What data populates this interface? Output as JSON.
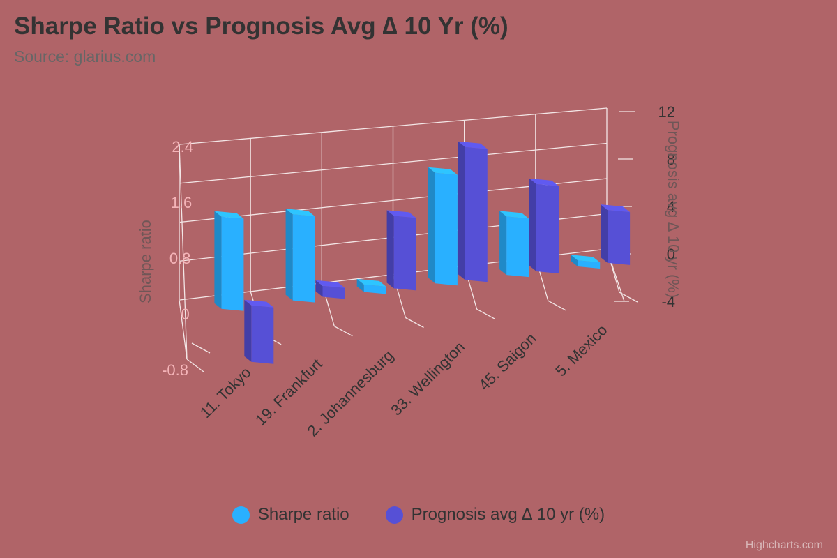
{
  "chart_data": {
    "type": "bar",
    "title": "Sharpe Ratio vs Prognosis Avg ∆ 10 Yr (%)",
    "subtitle": "Source: glarius.com",
    "categories": [
      "11. Tokyo",
      "19. Frankfurt",
      "2. Johannesburg",
      "33. Wellington",
      "45. Saigon",
      "5. Mexico"
    ],
    "series": [
      {
        "name": "Sharpe ratio",
        "axis": "left",
        "color": "#29b0ff",
        "values": [
          1.5,
          1.4,
          0.12,
          1.8,
          0.95,
          0.1
        ]
      },
      {
        "name": "Prognosis avg ∆ 10 yr (%)",
        "axis": "right",
        "color": "#5650d6",
        "values": [
          -4.6,
          0.9,
          5.9,
          10.8,
          7.1,
          4.3
        ]
      }
    ],
    "yAxisLeft": {
      "label": "Sharpe ratio",
      "min": -0.8,
      "max": 2.4,
      "ticks": [
        "-0.8",
        "0",
        "0.8",
        "1.6",
        "2.4"
      ]
    },
    "yAxisRight": {
      "label": "Prognosis avg ∆ 10 yr (%)",
      "min": -4,
      "max": 12,
      "ticks": [
        "-4",
        "0",
        "4",
        "8",
        "12"
      ]
    },
    "grid": true,
    "legend": "bottom-center",
    "credits": "Highcharts.com"
  }
}
